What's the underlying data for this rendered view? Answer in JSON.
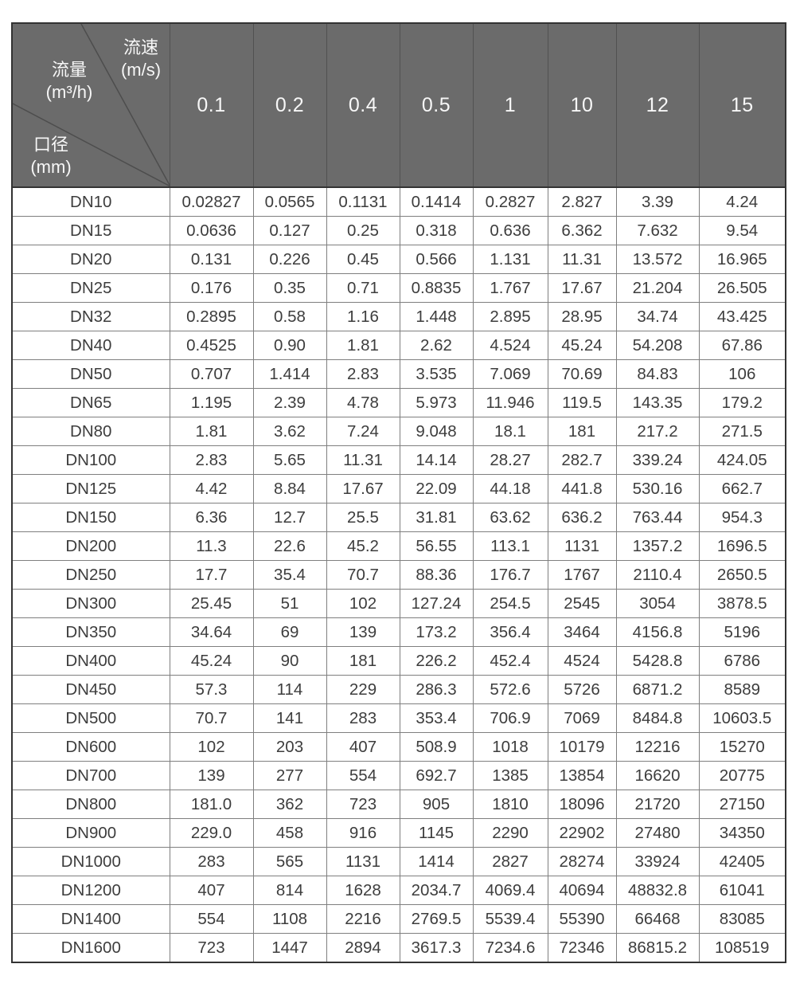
{
  "table": {
    "corner": {
      "velocity_label": "流速",
      "velocity_unit": "(m/s)",
      "flow_label": "流量",
      "flow_unit": "(m³/h)",
      "diameter_label": "口径",
      "diameter_unit": "(mm)"
    },
    "velocity_columns": [
      "0.1",
      "0.2",
      "0.4",
      "0.5",
      "1",
      "10",
      "12",
      "15"
    ],
    "rows": [
      {
        "dn": "DN10",
        "values": [
          "0.02827",
          "0.0565",
          "0.1131",
          "0.1414",
          "0.2827",
          "2.827",
          "3.39",
          "4.24"
        ]
      },
      {
        "dn": "DN15",
        "values": [
          "0.0636",
          "0.127",
          "0.25",
          "0.318",
          "0.636",
          "6.362",
          "7.632",
          "9.54"
        ]
      },
      {
        "dn": "DN20",
        "values": [
          "0.131",
          "0.226",
          "0.45",
          "0.566",
          "1.131",
          "11.31",
          "13.572",
          "16.965"
        ]
      },
      {
        "dn": "DN25",
        "values": [
          "0.176",
          "0.35",
          "0.71",
          "0.8835",
          "1.767",
          "17.67",
          "21.204",
          "26.505"
        ]
      },
      {
        "dn": "DN32",
        "values": [
          "0.2895",
          "0.58",
          "1.16",
          "1.448",
          "2.895",
          "28.95",
          "34.74",
          "43.425"
        ]
      },
      {
        "dn": "DN40",
        "values": [
          "0.4525",
          "0.90",
          "1.81",
          "2.62",
          "4.524",
          "45.24",
          "54.208",
          "67.86"
        ]
      },
      {
        "dn": "DN50",
        "values": [
          "0.707",
          "1.414",
          "2.83",
          "3.535",
          "7.069",
          "70.69",
          "84.83",
          "106"
        ]
      },
      {
        "dn": "DN65",
        "values": [
          "1.195",
          "2.39",
          "4.78",
          "5.973",
          "11.946",
          "119.5",
          "143.35",
          "179.2"
        ]
      },
      {
        "dn": "DN80",
        "values": [
          "1.81",
          "3.62",
          "7.24",
          "9.048",
          "18.1",
          "181",
          "217.2",
          "271.5"
        ]
      },
      {
        "dn": "DN100",
        "values": [
          "2.83",
          "5.65",
          "11.31",
          "14.14",
          "28.27",
          "282.7",
          "339.24",
          "424.05"
        ]
      },
      {
        "dn": "DN125",
        "values": [
          "4.42",
          "8.84",
          "17.67",
          "22.09",
          "44.18",
          "441.8",
          "530.16",
          "662.7"
        ]
      },
      {
        "dn": "DN150",
        "values": [
          "6.36",
          "12.7",
          "25.5",
          "31.81",
          "63.62",
          "636.2",
          "763.44",
          "954.3"
        ]
      },
      {
        "dn": "DN200",
        "values": [
          "11.3",
          "22.6",
          "45.2",
          "56.55",
          "113.1",
          "1131",
          "1357.2",
          "1696.5"
        ]
      },
      {
        "dn": "DN250",
        "values": [
          "17.7",
          "35.4",
          "70.7",
          "88.36",
          "176.7",
          "1767",
          "2110.4",
          "2650.5"
        ]
      },
      {
        "dn": "DN300",
        "values": [
          "25.45",
          "51",
          "102",
          "127.24",
          "254.5",
          "2545",
          "3054",
          "3878.5"
        ]
      },
      {
        "dn": "DN350",
        "values": [
          "34.64",
          "69",
          "139",
          "173.2",
          "356.4",
          "3464",
          "4156.8",
          "5196"
        ]
      },
      {
        "dn": "DN400",
        "values": [
          "45.24",
          "90",
          "181",
          "226.2",
          "452.4",
          "4524",
          "5428.8",
          "6786"
        ]
      },
      {
        "dn": "DN450",
        "values": [
          "57.3",
          "114",
          "229",
          "286.3",
          "572.6",
          "5726",
          "6871.2",
          "8589"
        ]
      },
      {
        "dn": "DN500",
        "values": [
          "70.7",
          "141",
          "283",
          "353.4",
          "706.9",
          "7069",
          "8484.8",
          "10603.5"
        ]
      },
      {
        "dn": "DN600",
        "values": [
          "102",
          "203",
          "407",
          "508.9",
          "1018",
          "10179",
          "12216",
          "15270"
        ]
      },
      {
        "dn": "DN700",
        "values": [
          "139",
          "277",
          "554",
          "692.7",
          "1385",
          "13854",
          "16620",
          "20775"
        ]
      },
      {
        "dn": "DN800",
        "values": [
          "181.0",
          "362",
          "723",
          "905",
          "1810",
          "18096",
          "21720",
          "27150"
        ]
      },
      {
        "dn": "DN900",
        "values": [
          "229.0",
          "458",
          "916",
          "1145",
          "2290",
          "22902",
          "27480",
          "34350"
        ]
      },
      {
        "dn": "DN1000",
        "values": [
          "283",
          "565",
          "1131",
          "1414",
          "2827",
          "28274",
          "33924",
          "42405"
        ]
      },
      {
        "dn": "DN1200",
        "values": [
          "407",
          "814",
          "1628",
          "2034.7",
          "4069.4",
          "40694",
          "48832.8",
          "61041"
        ]
      },
      {
        "dn": "DN1400",
        "values": [
          "554",
          "1108",
          "2216",
          "2769.5",
          "5539.4",
          "55390",
          "66468",
          "83085"
        ]
      },
      {
        "dn": "DN1600",
        "values": [
          "723",
          "1447",
          "2894",
          "3617.3",
          "7234.6",
          "72346",
          "86815.2",
          "108519"
        ]
      }
    ],
    "colors": {
      "header_bg": "#6b6b6b",
      "header_text": "#f7f7f7",
      "body_text": "#3d3d3d",
      "grid_line": "#7f7f7f",
      "outer_border": "#333333",
      "diagonal_line": "#4d4d4d"
    }
  },
  "chart_data": {
    "type": "table",
    "title": "流量-流速-口径对照表",
    "columns_label": "流速 (m/s)",
    "rows_label": "口径 (mm)",
    "cell_unit": "流量 (m³/h)",
    "columns": [
      "0.1",
      "0.2",
      "0.4",
      "0.5",
      "1",
      "10",
      "12",
      "15"
    ]
  }
}
